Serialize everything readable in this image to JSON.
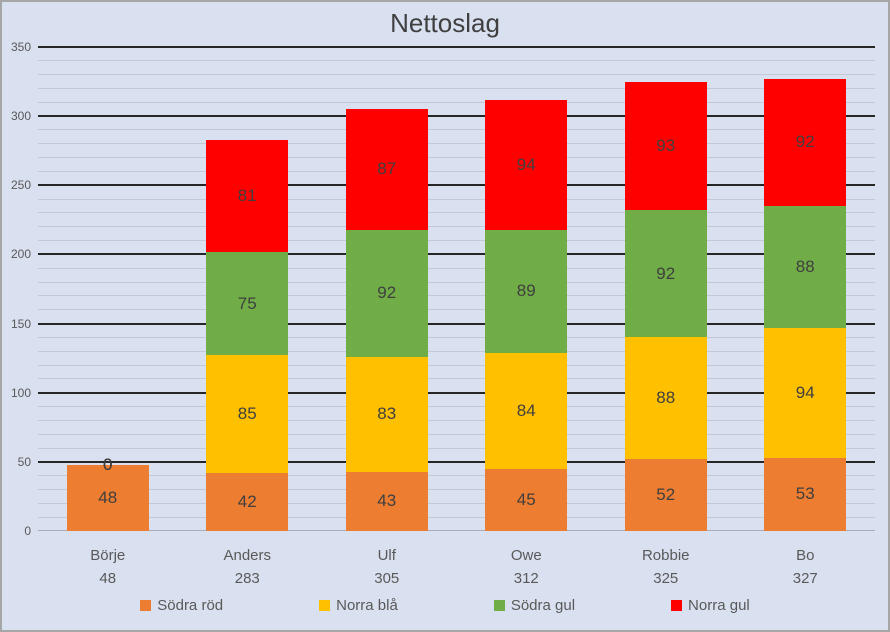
{
  "window": {
    "background": "#D9E0EF",
    "border_color": "#A6A6A6"
  },
  "chart_data": {
    "type": "bar",
    "stacked": true,
    "title": "Nettoslag",
    "categories": [
      "Börje",
      "Anders",
      "Ulf",
      "Owe",
      "Robbie",
      "Bo"
    ],
    "category_totals": [
      48,
      283,
      305,
      312,
      325,
      327
    ],
    "series": [
      {
        "name": "Södra röd",
        "color": "#ED7D31",
        "values": [
          48,
          42,
          43,
          45,
          52,
          53
        ]
      },
      {
        "name": "Norra blå",
        "color": "#FFC000",
        "values": [
          0,
          85,
          83,
          84,
          88,
          94
        ]
      },
      {
        "name": "Södra gul",
        "color": "#70AD47",
        "values": [
          0,
          75,
          92,
          89,
          92,
          88
        ]
      },
      {
        "name": "Norra gul",
        "color": "#FF0000",
        "values": [
          0,
          81,
          87,
          94,
          93,
          92
        ]
      }
    ],
    "ylim": [
      0,
      350
    ],
    "y_major": 50,
    "y_minor": 10,
    "y_ticks": [
      "0",
      "50",
      "100",
      "150",
      "200",
      "250",
      "300",
      "350"
    ],
    "grid": true,
    "show_zero_labels": true,
    "legend_position": "bottom",
    "colors": {
      "major_gridline": "#262626",
      "minor_gridline": "#C4C8D2",
      "data_label": "#3F3F3F",
      "axis_text": "#595959",
      "title_text": "#404040"
    }
  }
}
